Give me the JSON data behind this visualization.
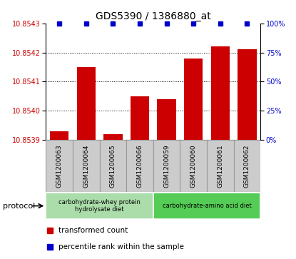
{
  "title": "GDS5390 / 1386880_at",
  "samples": [
    "GSM1200063",
    "GSM1200064",
    "GSM1200065",
    "GSM1200066",
    "GSM1200059",
    "GSM1200060",
    "GSM1200061",
    "GSM1200062"
  ],
  "bar_values": [
    10.85393,
    10.85415,
    10.85392,
    10.85405,
    10.85404,
    10.85418,
    10.85422,
    10.85421
  ],
  "percentile_values": [
    100,
    100,
    100,
    100,
    100,
    100,
    100,
    100
  ],
  "ylim_left": [
    10.8539,
    10.8543
  ],
  "ylim_right": [
    0,
    100
  ],
  "yticks_left": [
    10.8539,
    10.854,
    10.8541,
    10.8542,
    10.8543
  ],
  "yticks_right": [
    0,
    25,
    50,
    75,
    100
  ],
  "bar_color": "#cc0000",
  "percentile_color": "#0000cc",
  "protocol_groups": [
    {
      "label": "carbohydrate-whey protein\nhydrolysate diet",
      "start": 0,
      "end": 4,
      "color": "#aaddaa"
    },
    {
      "label": "carbohydrate-amino acid diet",
      "start": 4,
      "end": 8,
      "color": "#55cc55"
    }
  ],
  "protocol_label": "protocol",
  "legend_items": [
    {
      "label": "transformed count",
      "color": "#cc0000"
    },
    {
      "label": "percentile rank within the sample",
      "color": "#0000cc"
    }
  ],
  "gray_box_color": "#cccccc",
  "gray_box_edge": "#999999"
}
